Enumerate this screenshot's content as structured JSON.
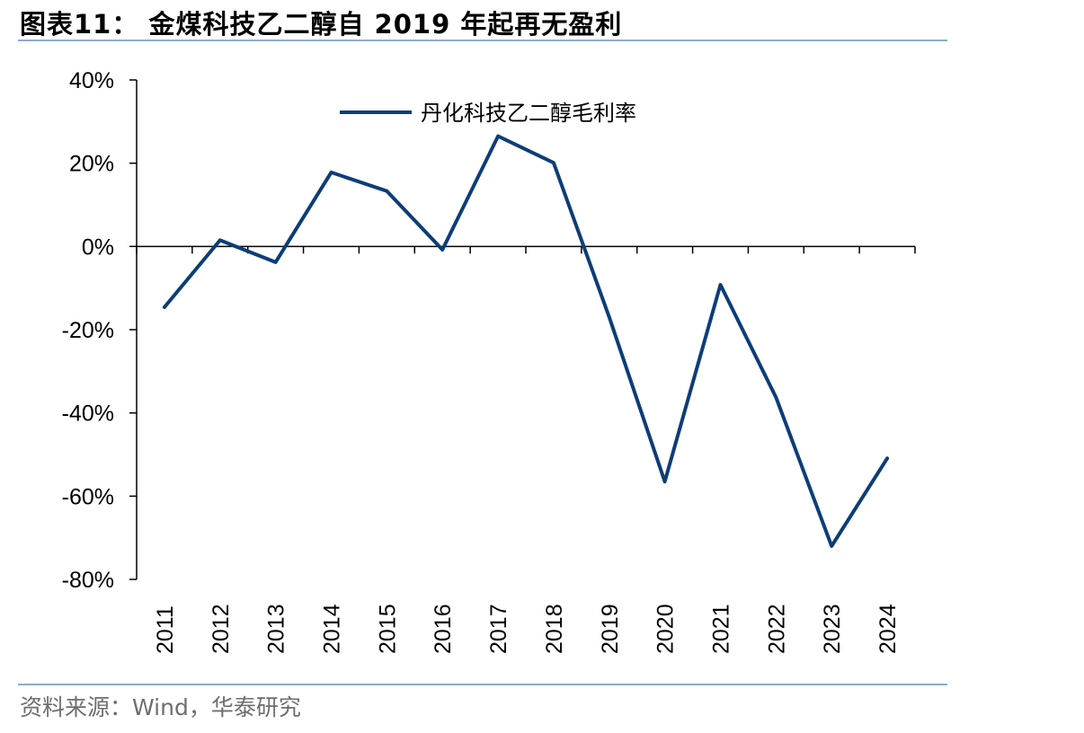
{
  "header": {
    "title": "图表11：  金煤科技乙二醇自 2019 年起再无盈利"
  },
  "footer": {
    "source": "资料来源：Wind，华泰研究"
  },
  "colors": {
    "series": "#0d3d78",
    "rule": "#8fa9c8",
    "axis": "#000000"
  },
  "chart_data": {
    "type": "line",
    "title": "",
    "xlabel": "",
    "ylabel": "",
    "categories": [
      "2011",
      "2012",
      "2013",
      "2014",
      "2015",
      "2016",
      "2017",
      "2018",
      "2019",
      "2020",
      "2021",
      "2022",
      "2023",
      "2024"
    ],
    "series": [
      {
        "name": "丹化科技乙二醇毛利率",
        "values": [
          -14.6,
          1.5,
          -3.8,
          17.8,
          13.3,
          -0.8,
          26.5,
          20.1,
          -17.0,
          -56.5,
          -9.2,
          -36.3,
          -72.0,
          -50.9
        ],
        "color": "#0d3d78"
      }
    ],
    "ylim": [
      -80,
      40
    ],
    "yticks": [
      40,
      20,
      0,
      -20,
      -40,
      -60,
      -80
    ],
    "ytick_labels": [
      "40%",
      "20%",
      "0%",
      "-20%",
      "-40%",
      "-60%",
      "-80%"
    ],
    "legend_position": "top-center",
    "grid": false
  }
}
